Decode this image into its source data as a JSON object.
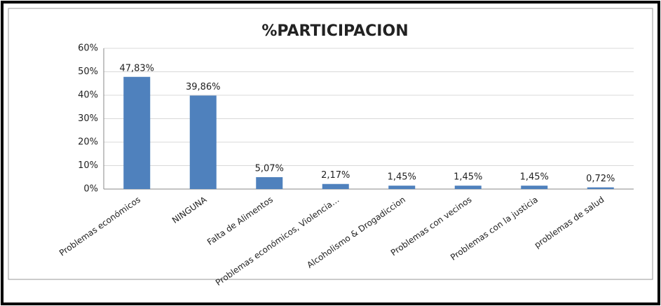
{
  "chart_data": {
    "type": "bar",
    "title": "%PARTICIPACION",
    "categories": [
      "Problemas económicos",
      "NINGUNA",
      "Falta de Alimentos",
      "Problemas económicos, Violencia…",
      "Alcoholismo & Drogadiccion",
      "Problemas con vecinos",
      "Problemas con la justicia",
      "problemas de salud"
    ],
    "values": [
      47.83,
      39.86,
      5.07,
      2.17,
      1.45,
      1.45,
      1.45,
      0.72
    ],
    "value_labels": [
      "47,83%",
      "39,86%",
      "5,07%",
      "2,17%",
      "1,45%",
      "1,45%",
      "1,45%",
      "0,72%"
    ],
    "color": "#4f81bd",
    "ylim": [
      0,
      60
    ],
    "yticks": [
      {
        "value": 0,
        "label": "0%"
      },
      {
        "value": 10,
        "label": "10%"
      },
      {
        "value": 20,
        "label": "20%"
      },
      {
        "value": 30,
        "label": "30%"
      },
      {
        "value": 40,
        "label": "40%"
      },
      {
        "value": 50,
        "label": "50%"
      },
      {
        "value": 60,
        "label": "60%"
      }
    ],
    "grid": true
  }
}
